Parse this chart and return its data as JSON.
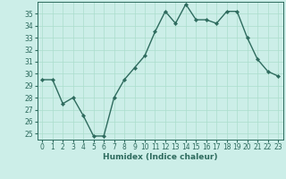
{
  "x": [
    0,
    1,
    2,
    3,
    4,
    5,
    6,
    7,
    8,
    9,
    10,
    11,
    12,
    13,
    14,
    15,
    16,
    17,
    18,
    19,
    20,
    21,
    22,
    23
  ],
  "y": [
    29.5,
    29.5,
    27.5,
    28.0,
    26.5,
    24.8,
    24.8,
    28.0,
    29.5,
    30.5,
    31.5,
    33.5,
    35.2,
    34.2,
    35.8,
    34.5,
    34.5,
    34.2,
    35.2,
    35.2,
    33.0,
    31.2,
    30.2,
    29.8
  ],
  "line_color": "#2e6b5e",
  "marker_color": "#2e6b5e",
  "bg_color": "#cceee8",
  "grid_color": "#aaddcc",
  "xlabel": "Humidex (Indice chaleur)",
  "ylim": [
    24.5,
    36.0
  ],
  "yticks": [
    25,
    26,
    27,
    28,
    29,
    30,
    31,
    32,
    33,
    34,
    35
  ],
  "xlim": [
    -0.5,
    23.5
  ],
  "xticks": [
    0,
    1,
    2,
    3,
    4,
    5,
    6,
    7,
    8,
    9,
    10,
    11,
    12,
    13,
    14,
    15,
    16,
    17,
    18,
    19,
    20,
    21,
    22,
    23
  ],
  "tick_fontsize": 5.5,
  "xlabel_fontsize": 6.5,
  "linewidth": 1.0,
  "markersize": 2.2
}
